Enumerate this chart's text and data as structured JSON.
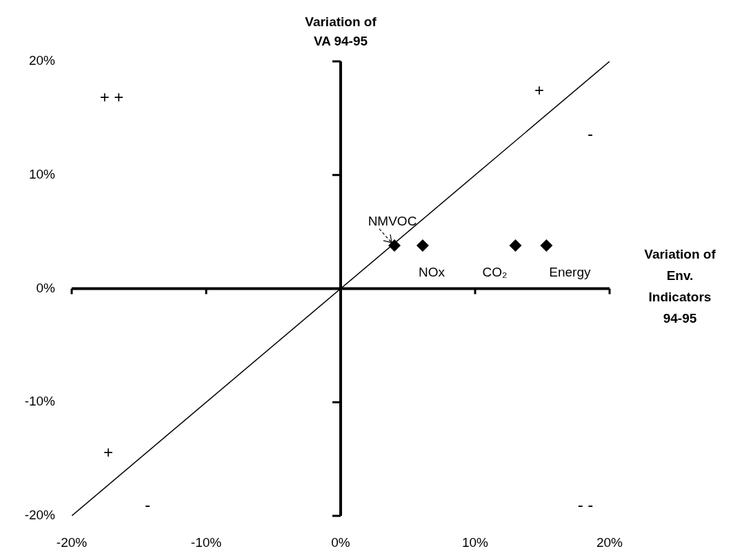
{
  "chart_data": {
    "type": "scatter",
    "xlabel": "Variation of Env. Indicators 94-95",
    "ylabel": "Variation of VA 94-95",
    "series": [
      {
        "type": "line",
        "x": [
          -20,
          20
        ],
        "values": [
          -20,
          20
        ],
        "color": "#000000",
        "marker": "none"
      },
      {
        "type": "scatter",
        "x": [
          4.0,
          6.1,
          13.0,
          15.3
        ],
        "values": [
          3.8,
          3.8,
          3.8,
          3.8
        ],
        "color": "#000000",
        "marker": "diamond"
      }
    ],
    "xlim": [
      -20,
      20
    ],
    "ylim": [
      -20,
      20
    ],
    "xticks": [
      {
        "value": -20,
        "label": "-20%"
      },
      {
        "value": -10,
        "label": "-10%"
      },
      {
        "value": 0,
        "label": "0%"
      },
      {
        "value": 10,
        "label": "10%"
      },
      {
        "value": 20,
        "label": "20%"
      }
    ],
    "yticks": [
      {
        "value": -20,
        "label": "-20%"
      },
      {
        "value": -10,
        "label": "-10%"
      },
      {
        "value": 0,
        "label": "0%"
      },
      {
        "value": 10,
        "label": "10%"
      },
      {
        "value": 20,
        "label": "20%"
      }
    ],
    "annotations": [
      {
        "text": "NMVOC",
        "x": 4.0,
        "y": 3.8
      },
      {
        "text": "NOx",
        "x": 6.1,
        "y": 3.8
      },
      {
        "text": "CO₂",
        "x": 13.0,
        "y": 3.8
      },
      {
        "text": "Energy",
        "x": 15.3,
        "y": 3.8
      },
      "+ +",
      "+",
      "-",
      "+",
      "-",
      "- -"
    ]
  }
}
